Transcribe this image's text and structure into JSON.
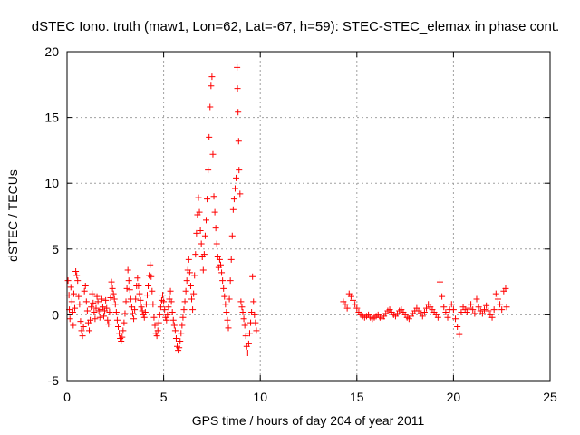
{
  "chart_data": {
    "type": "scatter",
    "title": "dSTEC Iono. truth (maw1, Lon=62, Lat=-67, h=59): STEC-STEC_elemax in phase cont.",
    "xlabel": "GPS time / hours of day 204 of year 2011",
    "ylabel": "dSTEC  / TECUs",
    "xlim": [
      0,
      25
    ],
    "ylim": [
      -5,
      20
    ],
    "xticks": [
      0,
      5,
      10,
      15,
      20,
      25
    ],
    "yticks": [
      -5,
      0,
      5,
      10,
      15,
      20
    ],
    "xtick_labels": [
      "0",
      "5",
      "10",
      "15",
      "20",
      "25"
    ],
    "ytick_labels": [
      "-5",
      "0",
      "5",
      "10",
      "15",
      "20"
    ],
    "grid": true,
    "legend": "none",
    "marker": "plus",
    "color": "#ff0000",
    "series": [
      {
        "values_xy": [
          [
            0.05,
            2.6
          ],
          [
            0.1,
            1.5
          ],
          [
            0.12,
            0.4
          ],
          [
            0.15,
            -0.3
          ],
          [
            0.2,
            2.1
          ],
          [
            0.25,
            1.0
          ],
          [
            0.3,
            0.2
          ],
          [
            0.32,
            -0.8
          ],
          [
            0.35,
            1.6
          ],
          [
            0.4,
            0.5
          ],
          [
            0.45,
            3.3
          ],
          [
            0.5,
            3.0
          ],
          [
            0.55,
            2.6
          ],
          [
            0.6,
            1.4
          ],
          [
            0.65,
            0.8
          ],
          [
            0.7,
            -0.5
          ],
          [
            0.75,
            -1.2
          ],
          [
            0.8,
            -1.6
          ],
          [
            0.85,
            -0.9
          ],
          [
            0.9,
            1.8
          ],
          [
            0.95,
            2.2
          ],
          [
            1.0,
            1.0
          ],
          [
            1.05,
            0.3
          ],
          [
            1.1,
            -0.6
          ],
          [
            1.15,
            -1.2
          ],
          [
            1.2,
            -0.4
          ],
          [
            1.25,
            0.6
          ],
          [
            1.3,
            1.6
          ],
          [
            1.35,
            0.9
          ],
          [
            1.4,
            0.2
          ],
          [
            1.45,
            -0.3
          ],
          [
            1.5,
            0.5
          ],
          [
            1.55,
            1.4
          ],
          [
            1.6,
            1.0
          ],
          [
            1.65,
            0.3
          ],
          [
            1.7,
            -0.2
          ],
          [
            1.75,
            0.4
          ],
          [
            1.8,
            1.2
          ],
          [
            1.85,
            0.6
          ],
          [
            1.9,
            -0.1
          ],
          [
            1.95,
            0.3
          ],
          [
            2.0,
            1.1
          ],
          [
            2.05,
            0.5
          ],
          [
            2.1,
            -0.4
          ],
          [
            2.15,
            -0.7
          ],
          [
            2.2,
            0.2
          ],
          [
            2.25,
            1.3
          ],
          [
            2.3,
            2.5
          ],
          [
            2.35,
            2.0
          ],
          [
            2.4,
            1.6
          ],
          [
            2.45,
            1.2
          ],
          [
            2.5,
            0.8
          ],
          [
            2.55,
            0.2
          ],
          [
            2.6,
            -0.4
          ],
          [
            2.65,
            -0.9
          ],
          [
            2.7,
            -1.4
          ],
          [
            2.75,
            -1.8
          ],
          [
            2.8,
            -2.0
          ],
          [
            2.85,
            -1.7
          ],
          [
            2.9,
            -1.2
          ],
          [
            2.95,
            -0.6
          ],
          [
            3.0,
            0.1
          ],
          [
            3.05,
            1.0
          ],
          [
            3.1,
            2.0
          ],
          [
            3.15,
            3.4
          ],
          [
            3.2,
            2.6
          ],
          [
            3.25,
            1.9
          ],
          [
            3.3,
            1.2
          ],
          [
            3.35,
            0.6
          ],
          [
            3.4,
            0.1
          ],
          [
            3.45,
            -0.3
          ],
          [
            3.5,
            0.4
          ],
          [
            3.55,
            1.2
          ],
          [
            3.6,
            2.2
          ],
          [
            3.65,
            2.8
          ],
          [
            3.7,
            2.2
          ],
          [
            3.75,
            1.6
          ],
          [
            3.8,
            1.1
          ],
          [
            3.85,
            0.6
          ],
          [
            3.9,
            0.3
          ],
          [
            3.95,
            0.0
          ],
          [
            4.0,
            -0.2
          ],
          [
            4.05,
            0.2
          ],
          [
            4.1,
            0.8
          ],
          [
            4.15,
            1.5
          ],
          [
            4.2,
            2.2
          ],
          [
            4.25,
            3.0
          ],
          [
            4.3,
            3.8
          ],
          [
            4.35,
            2.9
          ],
          [
            4.4,
            1.8
          ],
          [
            4.45,
            0.8
          ],
          [
            4.5,
            -0.2
          ],
          [
            4.55,
            -0.8
          ],
          [
            4.6,
            -1.4
          ],
          [
            4.65,
            -1.6
          ],
          [
            4.7,
            -1.2
          ],
          [
            4.75,
            -0.6
          ],
          [
            4.8,
            0.0
          ],
          [
            4.85,
            0.6
          ],
          [
            4.9,
            1.1
          ],
          [
            4.95,
            1.5
          ],
          [
            5.0,
            1.0
          ],
          [
            5.05,
            0.4
          ],
          [
            5.1,
            -0.2
          ],
          [
            5.15,
            -0.4
          ],
          [
            5.2,
            0.0
          ],
          [
            5.25,
            0.6
          ],
          [
            5.3,
            1.2
          ],
          [
            5.35,
            1.8
          ],
          [
            5.4,
            1.0
          ],
          [
            5.45,
            0.2
          ],
          [
            5.5,
            -0.4
          ],
          [
            5.55,
            -0.8
          ],
          [
            5.6,
            -1.2
          ],
          [
            5.65,
            -1.8
          ],
          [
            5.7,
            -2.4
          ],
          [
            5.75,
            -2.7
          ],
          [
            5.8,
            -2.5
          ],
          [
            5.85,
            -2.0
          ],
          [
            5.9,
            -1.4
          ],
          [
            5.95,
            -0.8
          ],
          [
            6.0,
            -0.2
          ],
          [
            6.05,
            0.4
          ],
          [
            6.1,
            1.0
          ],
          [
            6.15,
            1.8
          ],
          [
            6.2,
            2.6
          ],
          [
            6.25,
            3.4
          ],
          [
            6.3,
            4.2
          ],
          [
            6.35,
            3.2
          ],
          [
            6.4,
            2.2
          ],
          [
            6.45,
            1.2
          ],
          [
            6.5,
            0.4
          ],
          [
            6.55,
            1.6
          ],
          [
            6.6,
            3.0
          ],
          [
            6.65,
            4.6
          ],
          [
            6.7,
            6.2
          ],
          [
            6.75,
            7.6
          ],
          [
            6.8,
            8.9
          ],
          [
            6.85,
            7.8
          ],
          [
            6.9,
            6.4
          ],
          [
            6.95,
            5.4
          ],
          [
            7.0,
            4.4
          ],
          [
            7.05,
            3.4
          ],
          [
            7.1,
            4.6
          ],
          [
            7.15,
            6.0
          ],
          [
            7.2,
            7.2
          ],
          [
            7.25,
            8.8
          ],
          [
            7.3,
            11.0
          ],
          [
            7.35,
            13.5
          ],
          [
            7.4,
            15.8
          ],
          [
            7.45,
            17.4
          ],
          [
            7.5,
            18.1
          ],
          [
            7.55,
            12.2
          ],
          [
            7.6,
            9.0
          ],
          [
            7.65,
            7.8
          ],
          [
            7.7,
            6.6
          ],
          [
            7.75,
            5.4
          ],
          [
            7.8,
            4.4
          ],
          [
            7.85,
            3.6
          ],
          [
            7.9,
            4.2
          ],
          [
            7.95,
            3.8
          ],
          [
            8.0,
            3.2
          ],
          [
            8.05,
            2.6
          ],
          [
            8.1,
            2.0
          ],
          [
            8.15,
            1.4
          ],
          [
            8.2,
            0.8
          ],
          [
            8.25,
            0.2
          ],
          [
            8.3,
            -0.4
          ],
          [
            8.35,
            -1.0
          ],
          [
            8.4,
            1.2
          ],
          [
            8.45,
            2.6
          ],
          [
            8.5,
            4.2
          ],
          [
            8.55,
            6.0
          ],
          [
            8.6,
            8.0
          ],
          [
            8.65,
            8.8
          ],
          [
            8.7,
            9.6
          ],
          [
            8.75,
            10.4
          ],
          [
            8.8,
            18.8
          ],
          [
            8.82,
            17.2
          ],
          [
            8.85,
            15.4
          ],
          [
            8.88,
            13.2
          ],
          [
            8.9,
            11.0
          ],
          [
            8.95,
            9.2
          ],
          [
            9.0,
            1.0
          ],
          [
            9.05,
            0.6
          ],
          [
            9.1,
            0.2
          ],
          [
            9.15,
            -0.3
          ],
          [
            9.2,
            -0.8
          ],
          [
            9.25,
            -1.6
          ],
          [
            9.3,
            -2.4
          ],
          [
            9.35,
            -2.9
          ],
          [
            9.4,
            -2.2
          ],
          [
            9.45,
            -1.4
          ],
          [
            9.5,
            -0.6
          ],
          [
            9.55,
            0.2
          ],
          [
            9.6,
            2.9
          ],
          [
            9.65,
            1.0
          ],
          [
            9.7,
            0.0
          ],
          [
            9.75,
            -0.6
          ],
          [
            9.8,
            -1.2
          ],
          [
            14.3,
            1.0
          ],
          [
            14.4,
            0.8
          ],
          [
            14.5,
            0.5
          ],
          [
            14.6,
            1.6
          ],
          [
            14.7,
            1.4
          ],
          [
            14.8,
            1.1
          ],
          [
            14.9,
            0.8
          ],
          [
            15.0,
            0.5
          ],
          [
            15.1,
            0.2
          ],
          [
            15.2,
            0.0
          ],
          [
            15.3,
            -0.1
          ],
          [
            15.4,
            -0.2
          ],
          [
            15.5,
            -0.1
          ],
          [
            15.6,
            0.0
          ],
          [
            15.7,
            -0.2
          ],
          [
            15.8,
            -0.3
          ],
          [
            15.9,
            -0.2
          ],
          [
            16.0,
            -0.1
          ],
          [
            16.1,
            0.0
          ],
          [
            16.2,
            -0.2
          ],
          [
            16.3,
            -0.3
          ],
          [
            16.4,
            -0.1
          ],
          [
            16.5,
            0.1
          ],
          [
            16.6,
            0.3
          ],
          [
            16.7,
            0.4
          ],
          [
            16.8,
            0.2
          ],
          [
            16.9,
            0.0
          ],
          [
            17.0,
            -0.1
          ],
          [
            17.1,
            0.1
          ],
          [
            17.2,
            0.3
          ],
          [
            17.3,
            0.4
          ],
          [
            17.4,
            0.2
          ],
          [
            17.5,
            0.0
          ],
          [
            17.6,
            -0.2
          ],
          [
            17.7,
            -0.3
          ],
          [
            17.8,
            -0.1
          ],
          [
            17.9,
            0.1
          ],
          [
            18.0,
            0.3
          ],
          [
            18.1,
            0.5
          ],
          [
            18.2,
            0.3
          ],
          [
            18.3,
            0.1
          ],
          [
            18.4,
            -0.1
          ],
          [
            18.5,
            0.2
          ],
          [
            18.6,
            0.5
          ],
          [
            18.7,
            0.8
          ],
          [
            18.8,
            0.6
          ],
          [
            18.9,
            0.4
          ],
          [
            19.0,
            0.2
          ],
          [
            19.1,
            0.0
          ],
          [
            19.2,
            -0.2
          ],
          [
            19.3,
            2.5
          ],
          [
            19.4,
            1.4
          ],
          [
            19.5,
            0.6
          ],
          [
            19.6,
            0.2
          ],
          [
            19.7,
            -0.2
          ],
          [
            19.8,
            0.4
          ],
          [
            19.9,
            0.8
          ],
          [
            20.0,
            0.4
          ],
          [
            20.1,
            -0.3
          ],
          [
            20.2,
            -0.9
          ],
          [
            20.3,
            -1.5
          ],
          [
            20.4,
            0.2
          ],
          [
            20.5,
            0.6
          ],
          [
            20.6,
            0.4
          ],
          [
            20.7,
            0.2
          ],
          [
            20.8,
            0.5
          ],
          [
            20.9,
            0.8
          ],
          [
            21.0,
            0.4
          ],
          [
            21.1,
            0.1
          ],
          [
            21.2,
            1.2
          ],
          [
            21.3,
            0.6
          ],
          [
            21.4,
            0.3
          ],
          [
            21.5,
            0.1
          ],
          [
            21.6,
            0.4
          ],
          [
            21.7,
            0.7
          ],
          [
            21.8,
            0.3
          ],
          [
            21.9,
            0.0
          ],
          [
            22.0,
            -0.2
          ],
          [
            22.1,
            0.4
          ],
          [
            22.2,
            1.6
          ],
          [
            22.3,
            1.2
          ],
          [
            22.4,
            0.8
          ],
          [
            22.5,
            0.4
          ],
          [
            22.6,
            1.8
          ],
          [
            22.7,
            2.0
          ],
          [
            22.75,
            0.6
          ]
        ]
      }
    ]
  }
}
